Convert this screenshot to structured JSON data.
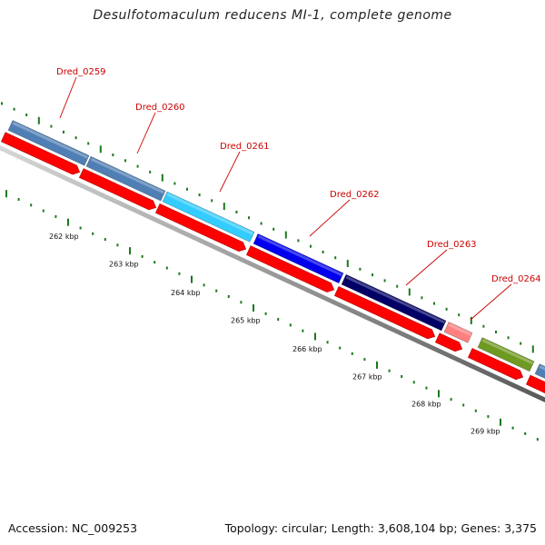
{
  "title": "Desulfotomaculum reducens MI-1, complete genome",
  "footer": {
    "accession": "Accession: NC_009253",
    "summary": "Topology: circular; Length: 3,608,104 bp; Genes: 3,375"
  },
  "gene_labels": [
    "Dred_0259",
    "Dred_0260",
    "Dred_0261",
    "Dred_0262",
    "Dred_0263",
    "Dred_0264"
  ],
  "scale_labels": [
    "262 kbp",
    "263 kbp",
    "264 kbp",
    "265 kbp",
    "266 kbp",
    "267 kbp",
    "268 kbp",
    "269 kbp"
  ],
  "colors": {
    "cds_track": "#ff0000",
    "backbone": "#888888",
    "tick": "#1a7a1a",
    "label": "#cc0000",
    "genes": [
      "#4f7fb5",
      "#4f7fb5",
      "#33ccff",
      "#0000ee",
      "#000066",
      "#ff8080",
      "#6f9a22",
      "#4f7fb5"
    ]
  }
}
